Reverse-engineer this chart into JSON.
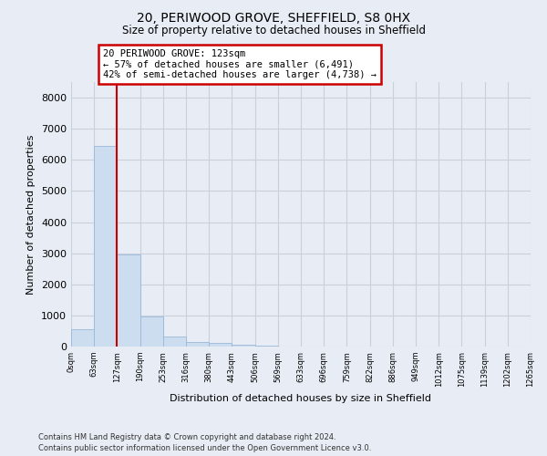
{
  "title1": "20, PERIWOOD GROVE, SHEFFIELD, S8 0HX",
  "title2": "Size of property relative to detached houses in Sheffield",
  "xlabel": "Distribution of detached houses by size in Sheffield",
  "ylabel": "Number of detached properties",
  "bar_color": "#ccddf0",
  "bar_edge_color": "#9ab8d8",
  "bar_values": [
    550,
    6450,
    2950,
    970,
    330,
    155,
    105,
    70,
    20,
    10,
    5,
    3,
    2,
    1,
    1,
    1,
    0,
    0,
    0,
    0
  ],
  "bin_labels": [
    "0sqm",
    "63sqm",
    "127sqm",
    "190sqm",
    "253sqm",
    "316sqm",
    "380sqm",
    "443sqm",
    "506sqm",
    "569sqm",
    "633sqm",
    "696sqm",
    "759sqm",
    "822sqm",
    "886sqm",
    "949sqm",
    "1012sqm",
    "1075sqm",
    "1139sqm",
    "1202sqm",
    "1265sqm"
  ],
  "property_line_x": 2,
  "property_line_color": "#cc0000",
  "annotation_text": "20 PERIWOOD GROVE: 123sqm\n← 57% of detached houses are smaller (6,491)\n42% of semi-detached houses are larger (4,738) →",
  "annotation_box_color": "#cc0000",
  "ylim": [
    0,
    8500
  ],
  "yticks": [
    0,
    1000,
    2000,
    3000,
    4000,
    5000,
    6000,
    7000,
    8000
  ],
  "footnote1": "Contains HM Land Registry data © Crown copyright and database right 2024.",
  "footnote2": "Contains public sector information licensed under the Open Government Licence v3.0.",
  "bg_color": "#e8edf5",
  "plot_bg_color": "#e8edf5",
  "grid_color": "#c8d0dc"
}
